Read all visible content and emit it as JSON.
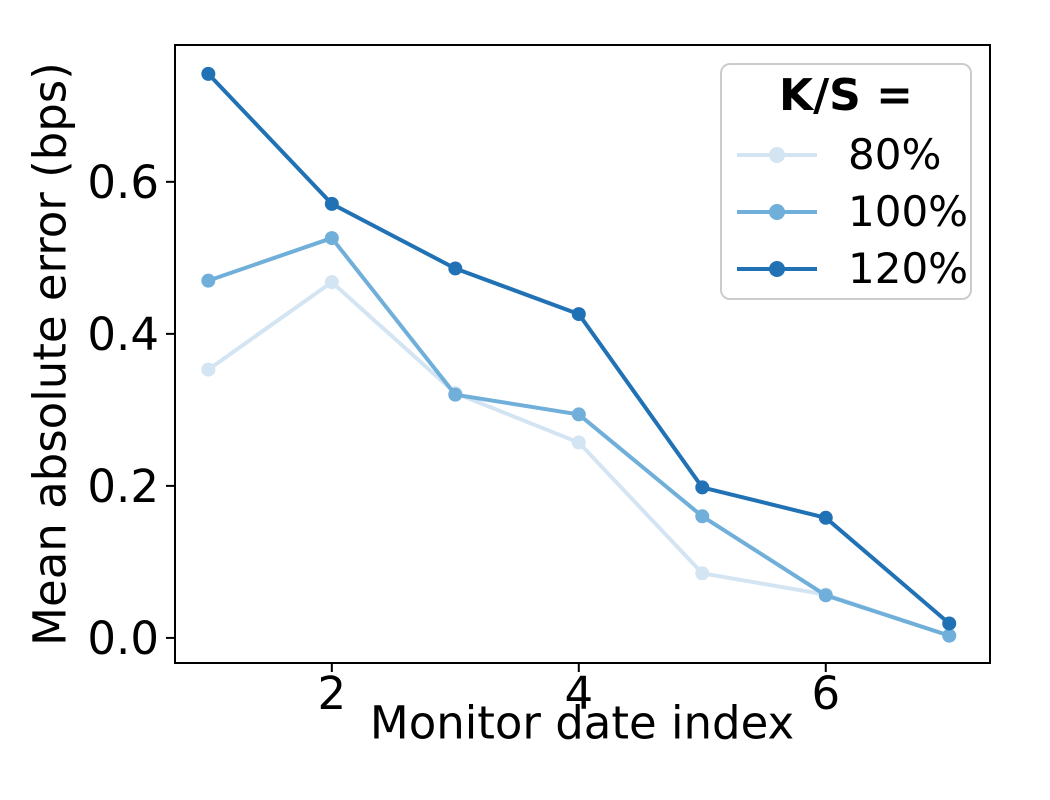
{
  "chart_data": {
    "type": "line",
    "title": "",
    "xlabel": "Monitor date index",
    "ylabel": "Mean absolute error (bps)",
    "x": [
      1,
      2,
      3,
      4,
      5,
      6,
      7
    ],
    "series": [
      {
        "name": "80%",
        "color": "#d3e4f3",
        "values": [
          0.353,
          0.468,
          0.322,
          0.257,
          0.085,
          0.057,
          0.003
        ]
      },
      {
        "name": "100%",
        "color": "#6fafd9",
        "values": [
          0.47,
          0.526,
          0.32,
          0.294,
          0.16,
          0.056,
          0.003
        ]
      },
      {
        "name": "120%",
        "color": "#2171b5",
        "values": [
          0.742,
          0.571,
          0.486,
          0.426,
          0.198,
          0.158,
          0.019
        ]
      }
    ],
    "legend": {
      "title": "K/S =",
      "position": "upper right",
      "entries": [
        "80%",
        "100%",
        "120%"
      ]
    },
    "xticks": {
      "values": [
        2,
        4,
        6
      ],
      "labels": [
        "2",
        "4",
        "6"
      ]
    },
    "yticks": {
      "values": [
        0.0,
        0.2,
        0.4,
        0.6
      ],
      "labels": [
        "0.0",
        "0.2",
        "0.4",
        "0.6"
      ]
    },
    "xlim": [
      0.73,
      7.33
    ],
    "ylim": [
      -0.033,
      0.78
    ],
    "grid": false,
    "marker": "circle",
    "colors": {
      "axis": "#000000",
      "tick_text": "#000000",
      "legend_border": "#cccccc",
      "background": "#ffffff"
    }
  }
}
